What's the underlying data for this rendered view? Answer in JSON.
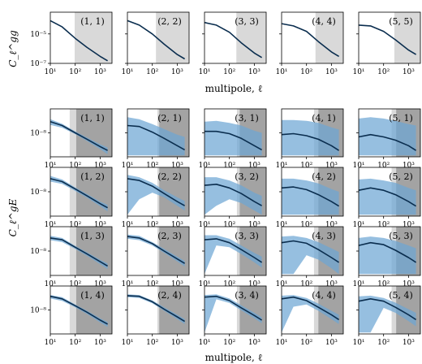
{
  "figure": {
    "top_ylabel": "C_ℓ^gg",
    "bottom_ylabel": "C_ℓ^gE",
    "xlabel": "multipole, ℓ"
  },
  "chart_data": {
    "type": "line",
    "x_axis": {
      "scale": "log",
      "xlim": [
        10,
        3000
      ],
      "ticks": [
        10,
        100,
        1000
      ],
      "tick_labels": [
        "10¹",
        "10²",
        "10³"
      ]
    },
    "top_row": {
      "ylabel": "C_ℓ^gg",
      "y_axis": {
        "scale": "log",
        "ylim": [
          1e-07,
          0.0003
        ],
        "ticks": [
          1e-07,
          1e-05
        ],
        "tick_labels": [
          "10⁻⁷",
          "10⁻⁵"
        ]
      },
      "panels": [
        {
          "label": "(1, 1)",
          "shade_start": 95,
          "x": [
            10,
            30,
            100,
            300,
            1000,
            2000
          ],
          "y": [
            8e-05,
            3e-05,
            5e-06,
            1.2e-06,
            3e-07,
            1.5e-07
          ]
        },
        {
          "label": "(2, 2)",
          "shade_start": 140,
          "x": [
            10,
            30,
            100,
            300,
            1000,
            2000
          ],
          "y": [
            8e-05,
            4e-05,
            1e-05,
            2e-06,
            4e-07,
            2e-07
          ]
        },
        {
          "label": "(3, 3)",
          "shade_start": 190,
          "x": [
            10,
            30,
            100,
            300,
            1000,
            2000
          ],
          "y": [
            6e-05,
            4e-05,
            1.3e-05,
            2.5e-06,
            5e-07,
            2.5e-07
          ]
        },
        {
          "label": "(4, 4)",
          "shade_start": 230,
          "x": [
            10,
            30,
            100,
            300,
            1000,
            2000
          ],
          "y": [
            5e-05,
            3.5e-05,
            1.5e-05,
            3e-06,
            6e-07,
            3e-07
          ]
        },
        {
          "label": "(5, 5)",
          "shade_start": 270,
          "x": [
            10,
            30,
            100,
            300,
            1000,
            2000
          ],
          "y": [
            4e-05,
            3.5e-05,
            1.5e-05,
            4e-06,
            8e-07,
            4e-07
          ]
        }
      ]
    },
    "bottom_grid": {
      "ylabel": "C_ℓ^gE",
      "y_axis": {
        "scale": "log",
        "ylim": [
          5e-10,
          2e-07
        ],
        "ticks": [
          1e-08
        ],
        "tick_labels": [
          "10⁻⁸"
        ]
      },
      "rows": [
        [
          {
            "label": "(1, 1)",
            "light_start": 60,
            "dark_start": 110,
            "x": [
              10,
              30,
              100,
              300,
              1000,
              2000
            ],
            "y": [
              4e-08,
              2.5e-08,
              1e-08,
              4.5e-09,
              1.8e-09,
              1.1e-09
            ],
            "band_upper": [
              5.5e-08,
              3.1e-08,
              1.2e-08,
              5.5e-09,
              2.4e-09,
              1.6e-09
            ],
            "band_lower": [
              2.7e-08,
              1.9e-08,
              8.5e-09,
              3.6e-09,
              1.3e-09,
              7e-10
            ]
          },
          {
            "label": "(2, 1)",
            "light_start": 160,
            "dark_start": 190,
            "x": [
              10,
              30,
              100,
              300,
              1000,
              2000
            ],
            "y": [
              2.5e-08,
              2.2e-08,
              1.1e-08,
              5e-09,
              2e-09,
              1.2e-09
            ],
            "band_upper": [
              7e-08,
              5.5e-08,
              3e-08,
              1.6e-08,
              8e-09,
              6e-09
            ],
            "band_lower": [
              6e-10,
              6e-10,
              6e-10,
              6e-10,
              6e-10,
              6e-10
            ]
          },
          {
            "label": "(3, 1)",
            "light_start": 200,
            "dark_start": 260,
            "x": [
              10,
              30,
              100,
              300,
              1000,
              2000
            ],
            "y": [
              1.2e-08,
              1.2e-08,
              9e-09,
              5e-09,
              2e-09,
              1.2e-09
            ],
            "band_upper": [
              4e-08,
              4.5e-08,
              3.5e-08,
              2.5e-08,
              1.3e-08,
              1e-08
            ],
            "band_lower": [
              6e-10,
              6e-10,
              6e-10,
              6e-10,
              6e-10,
              6e-10
            ]
          },
          {
            "label": "(4, 1)",
            "light_start": 200,
            "dark_start": 300,
            "x": [
              10,
              30,
              100,
              300,
              1000,
              2000
            ],
            "y": [
              8e-09,
              9e-09,
              7e-09,
              4.5e-09,
              2e-09,
              1.1e-09
            ],
            "band_upper": [
              5e-08,
              5e-08,
              4.5e-08,
              3.5e-08,
              2e-08,
              1.5e-08
            ],
            "band_lower": [
              6e-10,
              6e-10,
              6e-10,
              6e-10,
              6e-10,
              6e-10
            ]
          },
          {
            "label": "(5, 1)",
            "light_start": 210,
            "dark_start": 320,
            "x": [
              10,
              30,
              100,
              300,
              1000,
              2000
            ],
            "y": [
              6e-09,
              8e-09,
              6e-09,
              4e-09,
              2e-09,
              1.1e-09
            ],
            "band_upper": [
              6e-08,
              7e-08,
              6e-08,
              4.5e-08,
              3e-08,
              2.5e-08
            ],
            "band_lower": [
              6e-10,
              6e-10,
              6e-10,
              6e-10,
              6e-10,
              6e-10
            ]
          }
        ],
        [
          {
            "label": "(1, 2)",
            "light_start": 60,
            "dark_start": 110,
            "x": [
              10,
              30,
              100,
              300,
              1000,
              2000
            ],
            "y": [
              5e-08,
              3.5e-08,
              1.4e-08,
              6e-09,
              2.3e-09,
              1.4e-09
            ],
            "band_upper": [
              7e-08,
              4.5e-08,
              1.7e-08,
              7.5e-09,
              3e-09,
              2e-09
            ],
            "band_lower": [
              3.5e-08,
              2.6e-08,
              1.1e-08,
              4.8e-09,
              1.7e-09,
              9e-10
            ]
          },
          {
            "label": "(2, 2)",
            "light_start": 160,
            "dark_start": 190,
            "x": [
              10,
              30,
              100,
              300,
              1000,
              2000
            ],
            "y": [
              5e-08,
              4e-08,
              2e-08,
              8e-09,
              3e-09,
              1.8e-09
            ],
            "band_upper": [
              8e-08,
              6e-08,
              3e-08,
              1.2e-08,
              5e-09,
              3.2e-09
            ],
            "band_lower": [
              6e-10,
              4e-09,
              9e-09,
              5e-09,
              1.8e-09,
              1e-09
            ]
          },
          {
            "label": "(3, 2)",
            "light_start": 200,
            "dark_start": 260,
            "x": [
              10,
              30,
              100,
              300,
              1000,
              2000
            ],
            "y": [
              2.2e-08,
              2.5e-08,
              1.6e-08,
              8e-09,
              3e-09,
              1.8e-09
            ],
            "band_upper": [
              6e-08,
              6e-08,
              4e-08,
              2.2e-08,
              9e-09,
              6e-09
            ],
            "band_lower": [
              6e-10,
              1.8e-09,
              4e-09,
              2.5e-09,
              1e-09,
              6e-10
            ]
          },
          {
            "label": "(4, 2)",
            "light_start": 200,
            "dark_start": 300,
            "x": [
              10,
              30,
              100,
              300,
              1000,
              2000
            ],
            "y": [
              1.6e-08,
              1.8e-08,
              1.3e-08,
              7e-09,
              3e-09,
              1.7e-09
            ],
            "band_upper": [
              5e-08,
              5e-08,
              4e-08,
              2.8e-08,
              1.4e-08,
              1e-08
            ],
            "band_lower": [
              6e-10,
              6e-10,
              6e-10,
              6e-10,
              6e-10,
              6e-10
            ]
          },
          {
            "label": "(5, 2)",
            "light_start": 210,
            "dark_start": 320,
            "x": [
              10,
              30,
              100,
              300,
              1000,
              2000
            ],
            "y": [
              1.2e-08,
              1.6e-08,
              1.2e-08,
              7e-09,
              3e-09,
              1.7e-09
            ],
            "band_upper": [
              4.5e-08,
              5e-08,
              4e-08,
              3e-08,
              1.6e-08,
              1.2e-08
            ],
            "band_lower": [
              6e-10,
              6e-10,
              6e-10,
              6e-10,
              6e-10,
              6e-10
            ]
          }
        ],
        [
          {
            "label": "(1, 3)",
            "light_start": 60,
            "dark_start": 110,
            "x": [
              10,
              30,
              100,
              300,
              1000,
              2000
            ],
            "y": [
              5e-08,
              4e-08,
              1.6e-08,
              7e-09,
              2.7e-09,
              1.6e-09
            ],
            "band_upper": [
              6.5e-08,
              5e-08,
              1.9e-08,
              8.5e-09,
              3.4e-09,
              2.2e-09
            ],
            "band_lower": [
              3.8e-08,
              3e-08,
              1.3e-08,
              5.5e-09,
              2e-09,
              1.1e-09
            ]
          },
          {
            "label": "(2, 3)",
            "light_start": 160,
            "dark_start": 190,
            "x": [
              10,
              30,
              100,
              300,
              1000,
              2000
            ],
            "y": [
              6e-08,
              5e-08,
              2.5e-08,
              1e-08,
              3.8e-09,
              2.2e-09
            ],
            "band_upper": [
              7.5e-08,
              6.5e-08,
              3e-08,
              1.3e-08,
              5e-09,
              3e-09
            ],
            "band_lower": [
              4.5e-08,
              3.8e-08,
              2e-08,
              8e-09,
              2.8e-09,
              1.5e-09
            ]
          },
          {
            "label": "(3, 3)",
            "light_start": 200,
            "dark_start": 260,
            "x": [
              10,
              30,
              100,
              300,
              1000,
              2000
            ],
            "y": [
              4e-08,
              4.5e-08,
              2.8e-08,
              1.2e-08,
              4.5e-09,
              2.5e-09
            ],
            "band_upper": [
              7e-08,
              7e-08,
              4.5e-08,
              2e-08,
              8e-09,
              5e-09
            ],
            "band_lower": [
              6e-10,
              2e-08,
              1.6e-08,
              7e-09,
              2.5e-09,
              1.3e-09
            ]
          },
          {
            "label": "(4, 3)",
            "light_start": 200,
            "dark_start": 300,
            "x": [
              10,
              30,
              100,
              300,
              1000,
              2000
            ],
            "y": [
              2.8e-08,
              3.5e-08,
              2.6e-08,
              1.2e-08,
              4.5e-09,
              2.5e-09
            ],
            "band_upper": [
              6e-08,
              6.5e-08,
              5e-08,
              3e-08,
              1.4e-08,
              9e-09
            ],
            "band_lower": [
              6e-10,
              6e-10,
              6e-09,
              3.5e-09,
              1.2e-09,
              6e-10
            ]
          },
          {
            "label": "(5, 3)",
            "light_start": 210,
            "dark_start": 320,
            "x": [
              10,
              30,
              100,
              300,
              1000,
              2000
            ],
            "y": [
              2e-08,
              2.8e-08,
              2.2e-08,
              1.1e-08,
              4.5e-09,
              2.5e-09
            ],
            "band_upper": [
              5e-08,
              6e-08,
              5e-08,
              3.5e-08,
              2e-08,
              1.4e-08
            ],
            "band_lower": [
              6e-10,
              6e-10,
              6e-10,
              6e-10,
              6e-10,
              6e-10
            ]
          }
        ],
        [
          {
            "label": "(1, 4)",
            "light_start": 60,
            "dark_start": 110,
            "x": [
              10,
              30,
              100,
              300,
              1000,
              2000
            ],
            "y": [
              5.5e-08,
              4e-08,
              1.7e-08,
              7.5e-09,
              2.8e-09,
              1.7e-09
            ],
            "band_upper": [
              6.5e-08,
              5e-08,
              2e-08,
              9e-09,
              3.5e-09,
              2.2e-09
            ],
            "band_lower": [
              4.2e-08,
              3.1e-08,
              1.4e-08,
              6e-09,
              2.1e-09,
              1.2e-09
            ]
          },
          {
            "label": "(2, 4)",
            "light_start": 160,
            "dark_start": 190,
            "x": [
              10,
              30,
              100,
              300,
              1000,
              2000
            ],
            "y": [
              6e-08,
              5.5e-08,
              2.8e-08,
              1.1e-08,
              4.2e-09,
              2.4e-09
            ],
            "band_upper": [
              7e-08,
              6.5e-08,
              3.3e-08,
              1.4e-08,
              5.5e-09,
              3.2e-09
            ],
            "band_lower": [
              5e-08,
              4.5e-08,
              2.3e-08,
              9e-09,
              3.2e-09,
              1.7e-09
            ]
          },
          {
            "label": "(3, 4)",
            "light_start": 200,
            "dark_start": 260,
            "x": [
              10,
              30,
              100,
              300,
              1000,
              2000
            ],
            "y": [
              5e-08,
              5.5e-08,
              3.2e-08,
              1.3e-08,
              5e-09,
              2.8e-09
            ],
            "band_upper": [
              6.5e-08,
              7e-08,
              4.2e-08,
              1.8e-08,
              7e-09,
              4e-09
            ],
            "band_lower": [
              6e-10,
              3.8e-08,
              2.4e-08,
              9.5e-09,
              3.5e-09,
              1.9e-09
            ]
          },
          {
            "label": "(4, 4)",
            "light_start": 200,
            "dark_start": 300,
            "x": [
              10,
              30,
              100,
              300,
              1000,
              2000
            ],
            "y": [
              4e-08,
              5e-08,
              3.2e-08,
              1.4e-08,
              5.5e-09,
              3e-09
            ],
            "band_upper": [
              6e-08,
              6.5e-08,
              4.5e-08,
              2.2e-08,
              9e-09,
              5.5e-09
            ],
            "band_lower": [
              6e-10,
              1.5e-08,
              2e-08,
              9e-09,
              3.2e-09,
              1.7e-09
            ]
          },
          {
            "label": "(5, 4)",
            "light_start": 210,
            "dark_start": 320,
            "x": [
              10,
              30,
              100,
              300,
              1000,
              2000
            ],
            "y": [
              3e-08,
              4e-08,
              3e-08,
              1.4e-08,
              5.5e-09,
              3e-09
            ],
            "band_upper": [
              5.5e-08,
              6e-08,
              4.5e-08,
              2.5e-08,
              1.1e-08,
              7e-09
            ],
            "band_lower": [
              6e-10,
              6e-10,
              1.3e-08,
              7e-09,
              2.5e-09,
              1.3e-09
            ]
          }
        ]
      ]
    },
    "colors": {
      "line": "#0a2d4e",
      "band": "#6ea6d4",
      "shade_light": "#d9d9d9",
      "shade_dark": "#a3a3a3"
    }
  }
}
